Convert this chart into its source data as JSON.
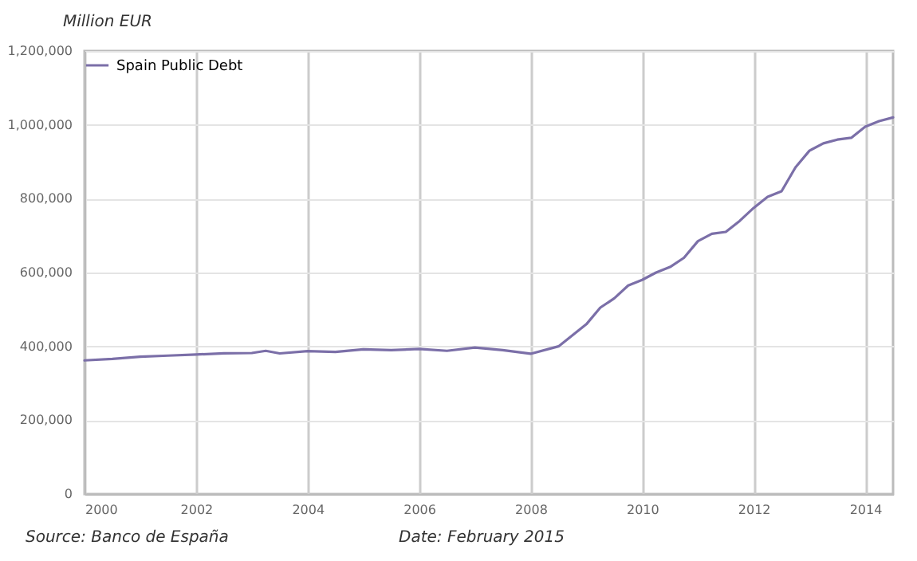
{
  "chart_data": {
    "type": "line",
    "ylabel": "Million EUR",
    "annotations": [
      "Source: Banco de España",
      "Date: February 2015"
    ],
    "x": [
      2000,
      2000.5,
      2001,
      2001.5,
      2002,
      2002.5,
      2003,
      2003.25,
      2003.5,
      2004,
      2004.5,
      2005,
      2005.5,
      2006,
      2006.5,
      2007,
      2007.5,
      2008,
      2008.5,
      2009,
      2009.25,
      2009.5,
      2009.75,
      2010,
      2010.25,
      2010.5,
      2010.75,
      2011,
      2011.25,
      2011.5,
      2011.75,
      2012,
      2012.25,
      2012.5,
      2012.75,
      2013,
      2013.25,
      2013.5,
      2013.75,
      2014,
      2014.25,
      2014.5
    ],
    "series": [
      {
        "name": "Spain Public Debt",
        "color": "#7b6fa8",
        "values": [
          362000,
          366000,
          372000,
          375000,
          378000,
          381000,
          382000,
          388000,
          381000,
          387000,
          385000,
          392000,
          390000,
          393000,
          388000,
          397000,
          390000,
          380000,
          400000,
          460000,
          505000,
          530000,
          565000,
          580000,
          600000,
          615000,
          640000,
          685000,
          705000,
          710000,
          740000,
          775000,
          805000,
          820000,
          885000,
          930000,
          950000,
          960000,
          965000,
          995000,
          1010000,
          1020000
        ]
      }
    ],
    "xlim": [
      2000,
      2014.5
    ],
    "xticks": [
      2000,
      2002,
      2004,
      2006,
      2008,
      2010,
      2012,
      2014
    ],
    "ylim": [
      0,
      1200000
    ],
    "yticks": [
      0,
      {
        "value": 200000,
        "label": "200,000"
      },
      {
        "value": 400000,
        "label": "400,000"
      },
      {
        "value": 600000,
        "label": "600,000"
      },
      {
        "value": 800000,
        "label": "800,000"
      },
      {
        "value": 1000000,
        "label": "1,000,000"
      },
      {
        "value": 1200000,
        "label": "1,200,000"
      }
    ],
    "grid": true,
    "legend": "top",
    "marker": "none",
    "line_style": "solid"
  }
}
